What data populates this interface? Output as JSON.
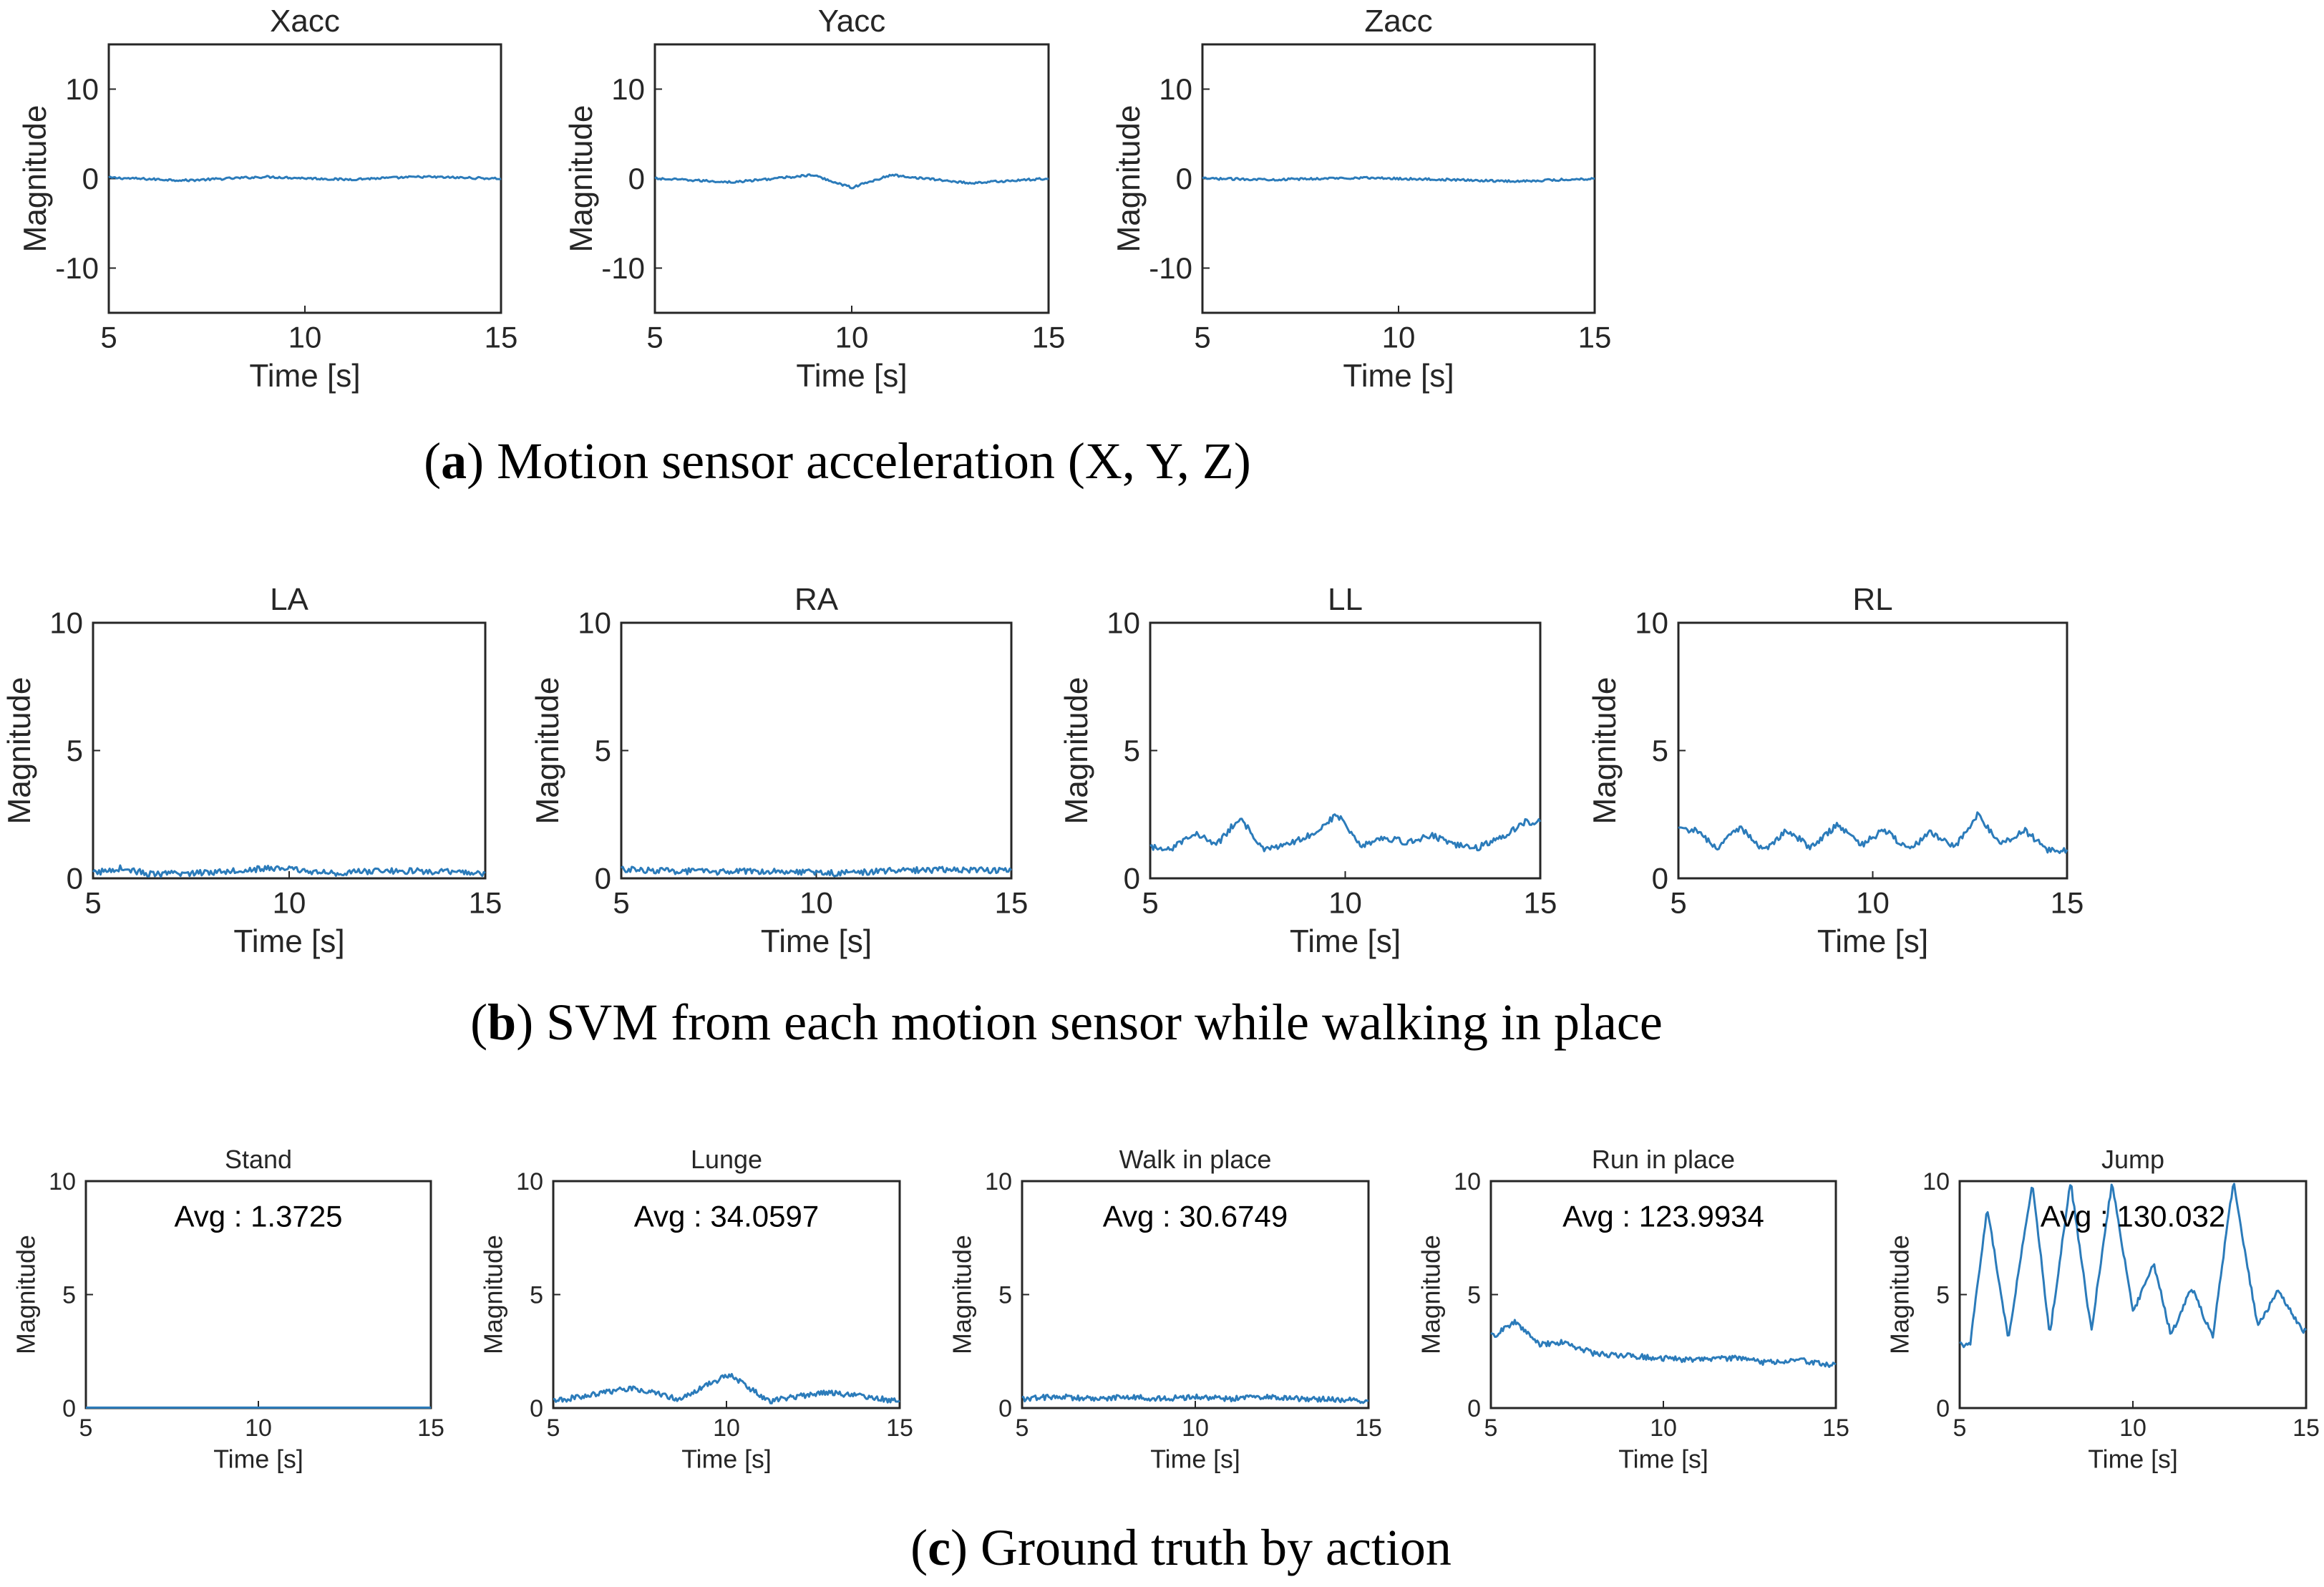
{
  "captions": {
    "a": {
      "letter": "a",
      "text": ") Motion sensor acceleration (X, Y, Z)"
    },
    "b": {
      "letter": "b",
      "text": ") SVM from each motion sensor while walking in place"
    },
    "c": {
      "letter": "c",
      "text": ") Ground truth by action"
    }
  },
  "colors": {
    "series": "#2b7bba",
    "axis": "#262626"
  },
  "chart_data": [
    {
      "type": "line",
      "title": "Xacc",
      "xlabel": "Time [s]",
      "ylabel": "Magnitude",
      "xlim": [
        5,
        15
      ],
      "ylim": [
        -15,
        15
      ],
      "xticks": [
        5,
        10,
        15
      ],
      "yticks": [
        -10,
        0,
        10
      ],
      "annotation": "",
      "series": [
        {
          "values_description": "noise",
          "x": [
            5,
            7,
            9,
            11,
            13,
            15
          ],
          "y": [
            0.1,
            -0.2,
            0.2,
            -0.1,
            0.2,
            0.0
          ]
        }
      ]
    },
    {
      "type": "line",
      "title": "Yacc",
      "xlabel": "Time [s]",
      "ylabel": "Magnitude",
      "xlim": [
        5,
        15
      ],
      "ylim": [
        -15,
        15
      ],
      "xticks": [
        5,
        10,
        15
      ],
      "yticks": [
        -10,
        0,
        10
      ],
      "annotation": "",
      "series": [
        {
          "x": [
            5,
            7,
            9,
            10,
            11,
            13,
            15
          ],
          "y": [
            0.0,
            -0.4,
            0.4,
            -1.0,
            0.4,
            -0.5,
            0.0
          ]
        }
      ]
    },
    {
      "type": "line",
      "title": "Zacc",
      "xlabel": "Time [s]",
      "ylabel": "Magnitude",
      "xlim": [
        5,
        15
      ],
      "ylim": [
        -15,
        15
      ],
      "xticks": [
        5,
        10,
        15
      ],
      "yticks": [
        -10,
        0,
        10
      ],
      "annotation": "",
      "series": [
        {
          "x": [
            5,
            7,
            9,
            11,
            13,
            15
          ],
          "y": [
            0.0,
            -0.1,
            0.1,
            -0.1,
            -0.3,
            0.0
          ]
        }
      ]
    },
    {
      "type": "line",
      "title": "LA",
      "xlabel": "Time [s]",
      "ylabel": "Magnitude",
      "xlim": [
        5,
        15
      ],
      "ylim": [
        0,
        10
      ],
      "xticks": [
        5,
        10,
        15
      ],
      "yticks": [
        0,
        5,
        10
      ],
      "annotation": "",
      "series": [
        {
          "x": [
            5,
            5.7,
            6.5,
            7.5,
            9,
            9.8,
            11,
            12.5,
            14,
            15
          ],
          "y": [
            0.2,
            0.4,
            0.15,
            0.2,
            0.35,
            0.4,
            0.2,
            0.3,
            0.25,
            0.2
          ]
        }
      ]
    },
    {
      "type": "line",
      "title": "RA",
      "xlabel": "Time [s]",
      "ylabel": "Magnitude",
      "xlim": [
        5,
        15
      ],
      "ylim": [
        0,
        10
      ],
      "xticks": [
        5,
        10,
        15
      ],
      "yticks": [
        0,
        5,
        10
      ],
      "annotation": "",
      "series": [
        {
          "x": [
            5,
            6,
            7.5,
            9,
            10.5,
            12,
            13.5,
            15
          ],
          "y": [
            0.35,
            0.3,
            0.25,
            0.3,
            0.2,
            0.3,
            0.35,
            0.3
          ]
        }
      ]
    },
    {
      "type": "line",
      "title": "LL",
      "xlabel": "Time [s]",
      "ylabel": "Magnitude",
      "xlim": [
        5,
        15
      ],
      "ylim": [
        0,
        10
      ],
      "xticks": [
        5,
        10,
        15
      ],
      "yticks": [
        0,
        5,
        10
      ],
      "annotation": "",
      "series": [
        {
          "x": [
            5.6,
            6.1,
            6.7,
            7.3,
            7.9,
            8.5,
            9.1,
            9.8,
            10.4,
            11.0,
            11.6,
            12.2,
            12.8,
            13.4,
            14.0,
            14.6
          ],
          "y": [
            1.2,
            1.8,
            1.3,
            2.4,
            1.1,
            1.3,
            1.7,
            2.5,
            1.3,
            1.6,
            1.4,
            1.7,
            1.3,
            1.2,
            1.6,
            2.2
          ]
        }
      ]
    },
    {
      "type": "line",
      "title": "RL",
      "xlabel": "Time [s]",
      "ylabel": "Magnitude",
      "xlim": [
        5,
        15
      ],
      "ylim": [
        0,
        10
      ],
      "xticks": [
        5,
        10,
        15
      ],
      "yticks": [
        0,
        5,
        10
      ],
      "annotation": "",
      "series": [
        {
          "x": [
            5.4,
            6.0,
            6.6,
            7.2,
            7.8,
            8.4,
            9.1,
            9.7,
            10.3,
            10.9,
            11.5,
            12.1,
            12.7,
            13.3,
            13.9,
            14.5
          ],
          "y": [
            1.9,
            1.2,
            2.0,
            1.1,
            1.9,
            1.2,
            2.1,
            1.3,
            1.9,
            1.1,
            1.8,
            1.2,
            2.5,
            1.3,
            1.9,
            1.1
          ]
        }
      ]
    },
    {
      "type": "line",
      "title": "Stand",
      "xlabel": "Time [s]",
      "ylabel": "Magnitude",
      "xlim": [
        5,
        15
      ],
      "ylim": [
        0,
        10
      ],
      "xticks": [
        5,
        10,
        15
      ],
      "yticks": [
        0,
        5,
        10
      ],
      "annotation": "Avg : 1.3725",
      "series": [
        {
          "x": [
            5,
            15
          ],
          "y": [
            0.02,
            0.02
          ]
        }
      ]
    },
    {
      "type": "line",
      "title": "Lunge",
      "xlabel": "Time [s]",
      "ylabel": "Magnitude",
      "xlim": [
        5,
        15
      ],
      "ylim": [
        0,
        10
      ],
      "xticks": [
        5,
        10,
        15
      ],
      "yticks": [
        0,
        5,
        10
      ],
      "annotation": "Avg : 34.0597",
      "series": [
        {
          "x": [
            5,
            7.3,
            8.6,
            10.1,
            11.2,
            12.9,
            15
          ],
          "y": [
            0.3,
            0.9,
            0.4,
            1.5,
            0.3,
            0.7,
            0.3
          ]
        }
      ]
    },
    {
      "type": "line",
      "title": "Walk in place",
      "xlabel": "Time [s]",
      "ylabel": "Magnitude",
      "xlim": [
        5,
        15
      ],
      "ylim": [
        0,
        10
      ],
      "xticks": [
        5,
        10,
        15
      ],
      "yticks": [
        0,
        5,
        10
      ],
      "annotation": "Avg : 30.6749",
      "series": [
        {
          "x": [
            5,
            6,
            7,
            8,
            9,
            10,
            11,
            12,
            13,
            14,
            15
          ],
          "y": [
            0.4,
            0.5,
            0.4,
            0.5,
            0.4,
            0.5,
            0.4,
            0.5,
            0.4,
            0.4,
            0.3
          ]
        }
      ]
    },
    {
      "type": "line",
      "title": "Run in place",
      "xlabel": "Time [s]",
      "ylabel": "Magnitude",
      "xlim": [
        5,
        15
      ],
      "ylim": [
        0,
        10
      ],
      "xticks": [
        5,
        10,
        15
      ],
      "yticks": [
        0,
        5,
        10
      ],
      "annotation": "Avg : 123.9934",
      "series": [
        {
          "x": [
            5.1,
            5.7,
            6.4,
            7.1,
            8.0,
            9.0,
            10.0,
            11.0,
            12.0,
            13.0,
            14.0,
            14.9
          ],
          "y": [
            3.2,
            3.8,
            2.8,
            2.9,
            2.4,
            2.3,
            2.2,
            2.1,
            2.2,
            2.0,
            2.1,
            1.9
          ]
        }
      ]
    },
    {
      "type": "line",
      "title": "Jump",
      "xlabel": "Time [s]",
      "ylabel": "Magnitude",
      "xlim": [
        5,
        15
      ],
      "ylim": [
        0,
        10
      ],
      "xticks": [
        5,
        10,
        15
      ],
      "yticks": [
        0,
        5,
        10
      ],
      "annotation": "Avg : 130.032",
      "series": [
        {
          "x": [
            5.3,
            5.8,
            6.4,
            7.1,
            7.6,
            8.2,
            8.8,
            9.4,
            10.0,
            10.6,
            11.1,
            11.7,
            12.3,
            12.9,
            13.6,
            14.2,
            14.9
          ],
          "y": [
            2.8,
            8.8,
            3.0,
            10.0,
            3.2,
            10.0,
            3.4,
            10.0,
            4.2,
            6.4,
            3.2,
            5.3,
            3.1,
            10.0,
            3.6,
            5.2,
            3.4
          ]
        }
      ]
    }
  ]
}
